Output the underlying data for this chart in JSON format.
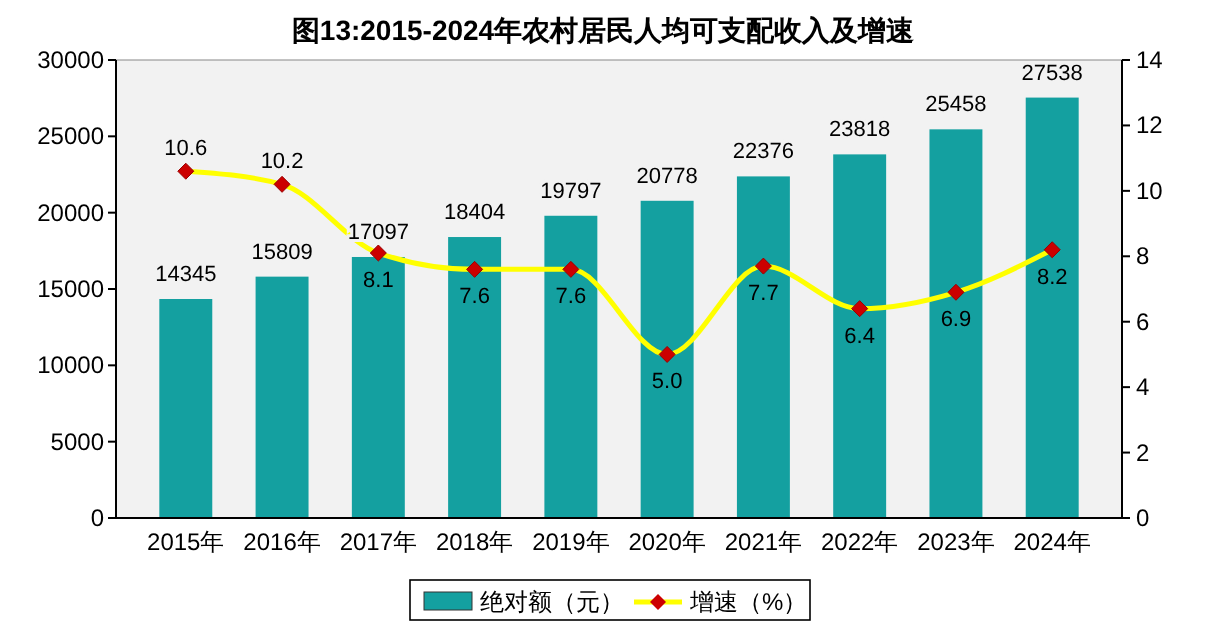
{
  "chart_data": {
    "type": "bar",
    "title": "图13:2015-2024年农村居民人均可支配收入及增速",
    "categories": [
      "2015年",
      "2016年",
      "2017年",
      "2018年",
      "2019年",
      "2020年",
      "2021年",
      "2022年",
      "2023年",
      "2024年"
    ],
    "series": [
      {
        "name": "绝对额（元）",
        "color": "#14a0a0",
        "values": [
          14345,
          15809,
          17097,
          18404,
          19797,
          20778,
          22376,
          23818,
          25458,
          27538
        ],
        "data_labels": true
      },
      {
        "name": "增速（%）",
        "type": "line",
        "axis": "y2",
        "color": "#ffff00",
        "marker": "diamond",
        "values": [
          10.6,
          10.2,
          8.1,
          7.6,
          7.6,
          5.0,
          7.7,
          6.4,
          6.9,
          8.2
        ],
        "value_labels": [
          "10.6",
          "10.2",
          "8.1",
          "7.6",
          "7.6",
          "5.0",
          "7.7",
          "6.4",
          "6.9",
          "8.2"
        ]
      }
    ],
    "ylim": [
      0,
      30000
    ],
    "yticks": [
      0,
      5000,
      10000,
      15000,
      20000,
      25000,
      30000
    ],
    "y2lim": [
      0,
      14
    ],
    "y2ticks": [
      0,
      2,
      4,
      6,
      8,
      10,
      12,
      14
    ],
    "grid": false,
    "legend": "bottom"
  }
}
